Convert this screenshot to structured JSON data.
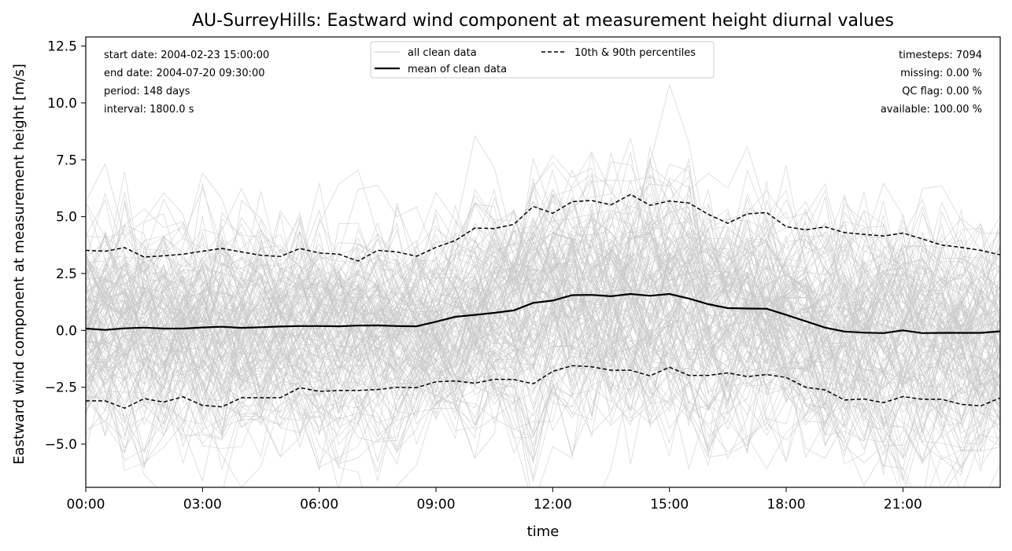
{
  "chart_data": {
    "type": "line",
    "title": "AU-SurreyHills: Eastward wind component at measurement height diurnal values",
    "xlabel": "time",
    "ylabel": "Eastward wind component at measurement height [m/s]",
    "xlim": [
      0,
      23.5
    ],
    "ylim": [
      -6.9,
      12.9
    ],
    "xticks": [
      0,
      3,
      6,
      9,
      12,
      15,
      18,
      21
    ],
    "xtick_labels": [
      "00:00",
      "03:00",
      "06:00",
      "09:00",
      "12:00",
      "15:00",
      "18:00",
      "21:00"
    ],
    "yticks": [
      -5.0,
      -2.5,
      0.0,
      2.5,
      5.0,
      7.5,
      10.0,
      12.5
    ],
    "ytick_labels": [
      "−5.0",
      "−2.5",
      "0.0",
      "2.5",
      "5.0",
      "7.5",
      "10.0",
      "12.5"
    ],
    "legend": {
      "placement": "top-center",
      "entries": [
        "all clean data",
        "mean of clean data",
        "10th & 90th percentiles"
      ]
    },
    "stats_left": [
      "start date: 2004-02-23 15:00:00",
      "end date: 2004-07-20 09:30:00",
      "period: 148 days",
      "interval: 1800.0 s"
    ],
    "stats_right": [
      "timesteps: 7094",
      "missing: 0.00 %",
      "QC flag: 0.00 %",
      "available: 100.00 %"
    ],
    "colors": {
      "all": "#c8c8c8",
      "mean": "#000000",
      "pct": "#000000"
    },
    "series": [
      {
        "name": "mean of clean data",
        "style": "solid",
        "x": [
          0,
          0.5,
          1,
          1.5,
          2,
          2.5,
          3,
          3.5,
          4,
          4.5,
          5,
          5.5,
          6,
          6.5,
          7,
          7.5,
          8,
          8.5,
          9,
          9.5,
          10,
          10.5,
          11,
          11.5,
          12,
          12.5,
          13,
          13.5,
          14,
          14.5,
          15,
          15.5,
          16,
          16.5,
          17,
          17.5,
          18,
          18.5,
          19,
          19.5,
          20,
          20.5,
          21,
          21.5,
          22,
          22.5,
          23,
          23.5
        ],
        "values": [
          0.08,
          0.02,
          0.09,
          0.12,
          0.08,
          0.08,
          0.13,
          0.16,
          0.11,
          0.14,
          0.17,
          0.19,
          0.19,
          0.18,
          0.21,
          0.22,
          0.19,
          0.18,
          0.38,
          0.6,
          0.68,
          0.77,
          0.88,
          1.21,
          1.31,
          1.55,
          1.56,
          1.5,
          1.6,
          1.52,
          1.6,
          1.4,
          1.15,
          0.98,
          0.96,
          0.95,
          0.68,
          0.4,
          0.12,
          -0.05,
          -0.1,
          -0.12,
          0.0,
          -0.12,
          -0.11,
          -0.11,
          -0.11,
          -0.04
        ]
      },
      {
        "name": "10th & 90th percentiles",
        "style": "dashed",
        "x": [
          0,
          0.5,
          1,
          1.5,
          2,
          2.5,
          3,
          3.5,
          4,
          4.5,
          5,
          5.5,
          6,
          6.5,
          7,
          7.5,
          8,
          8.5,
          9,
          9.5,
          10,
          10.5,
          11,
          11.5,
          12,
          12.5,
          13,
          13.5,
          14,
          14.5,
          15,
          15.5,
          16,
          16.5,
          17,
          17.5,
          18,
          18.5,
          19,
          19.5,
          20,
          20.5,
          21,
          21.5,
          22,
          22.5,
          23,
          23.5
        ],
        "values": [
          3.52,
          3.48,
          3.64,
          3.22,
          3.28,
          3.35,
          3.48,
          3.6,
          3.45,
          3.3,
          3.25,
          3.6,
          3.4,
          3.35,
          3.05,
          3.52,
          3.45,
          3.26,
          3.65,
          3.95,
          4.5,
          4.48,
          4.66,
          5.45,
          5.15,
          5.66,
          5.71,
          5.52,
          5.98,
          5.5,
          5.69,
          5.6,
          5.1,
          4.71,
          5.12,
          5.18,
          4.56,
          4.42,
          4.55,
          4.3,
          4.22,
          4.15,
          4.28,
          4.02,
          3.75,
          3.65,
          3.52,
          3.32
        ]
      },
      {
        "name": "10th & 90th percentiles",
        "style": "dashed",
        "x": [
          0,
          0.5,
          1,
          1.5,
          2,
          2.5,
          3,
          3.5,
          4,
          4.5,
          5,
          5.5,
          6,
          6.5,
          7,
          7.5,
          8,
          8.5,
          9,
          9.5,
          10,
          10.5,
          11,
          11.5,
          12,
          12.5,
          13,
          13.5,
          14,
          14.5,
          15,
          15.5,
          16,
          16.5,
          17,
          17.5,
          18,
          18.5,
          19,
          19.5,
          20,
          20.5,
          21,
          21.5,
          22,
          22.5,
          23,
          23.5
        ],
        "values": [
          -3.1,
          -3.1,
          -3.42,
          -3.0,
          -3.15,
          -2.92,
          -3.3,
          -3.36,
          -2.96,
          -2.96,
          -2.96,
          -2.52,
          -2.68,
          -2.64,
          -2.64,
          -2.6,
          -2.5,
          -2.52,
          -2.26,
          -2.22,
          -2.32,
          -2.15,
          -2.16,
          -2.35,
          -1.8,
          -1.55,
          -1.6,
          -1.75,
          -1.75,
          -2.0,
          -1.62,
          -1.98,
          -1.98,
          -1.87,
          -2.03,
          -1.94,
          -2.07,
          -2.5,
          -2.62,
          -3.06,
          -3.02,
          -3.18,
          -2.91,
          -3.03,
          -3.03,
          -3.25,
          -3.32,
          -2.97
        ]
      }
    ]
  }
}
